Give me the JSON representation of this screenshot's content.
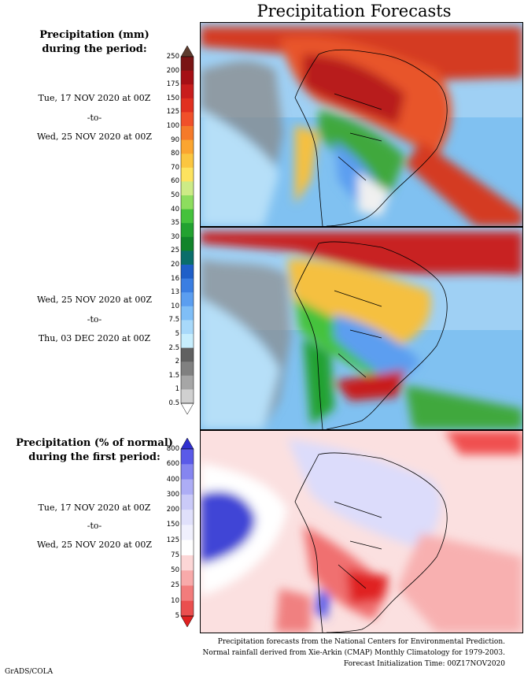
{
  "title": "Precipitation Forecasts",
  "legend_top": {
    "title_line1": "Precipitation (mm)",
    "title_line2": "during the period:",
    "levels": [
      "250",
      "200",
      "175",
      "150",
      "125",
      "100",
      "90",
      "80",
      "70",
      "60",
      "50",
      "40",
      "35",
      "30",
      "25",
      "20",
      "16",
      "13",
      "10",
      "7.5",
      "5",
      "2.5",
      "2",
      "1.5",
      "1",
      "0.5"
    ],
    "colors": [
      "#5e3c2f",
      "#7a1515",
      "#a50f15",
      "#c81d1d",
      "#e03020",
      "#f0502a",
      "#f57a2a",
      "#fba530",
      "#fbc640",
      "#fde35f",
      "#cdeb86",
      "#8ddd5e",
      "#45c23c",
      "#22a230",
      "#11842a",
      "#0a6e6a",
      "#1f5fc8",
      "#3a7ee2",
      "#5b9ef0",
      "#7fbef7",
      "#a8d9fa",
      "#c7eefd",
      "#606060",
      "#808080",
      "#a6a6a6",
      "#d0d0d0",
      "#ffffff"
    ]
  },
  "period1": {
    "start": "Tue, 17 NOV 2020 at 00Z",
    "sep": "-to-",
    "end": "Wed, 25 NOV 2020 at 00Z"
  },
  "period2": {
    "start": "Wed, 25 NOV 2020 at 00Z",
    "sep": "-to-",
    "end": "Thu, 03 DEC 2020 at 00Z"
  },
  "legend_bottom": {
    "title_line1": "Precipitation (% of normal)",
    "title_line2": "during the first period:",
    "levels": [
      "800",
      "600",
      "400",
      "300",
      "200",
      "150",
      "125",
      "75",
      "50",
      "25",
      "10",
      "5"
    ],
    "colors": [
      "#3030d0",
      "#5a5ae8",
      "#8585f0",
      "#adadf5",
      "#cacaf8",
      "#e0e0fb",
      "#f0f0fd",
      "#ffffff",
      "#fcd6d6",
      "#f8aaaa",
      "#f27c7c",
      "#ea4f4f",
      "#e02020"
    ]
  },
  "period3": {
    "start": "Tue, 17 NOV 2020 at 00Z",
    "sep": "-to-",
    "end": "Wed, 25 NOV 2020 at 00Z"
  },
  "credits": {
    "line1": "Precipitation forecasts from the National Centers for Environmental Prediction.",
    "line2": "Normal rainfall derived from Xie-Arkin (CMAP) Monthly Climatology for 1979-2003.",
    "line3": "Forecast Initialization Time: 00Z17NOV2020"
  },
  "footer": "GrADS/COLA"
}
